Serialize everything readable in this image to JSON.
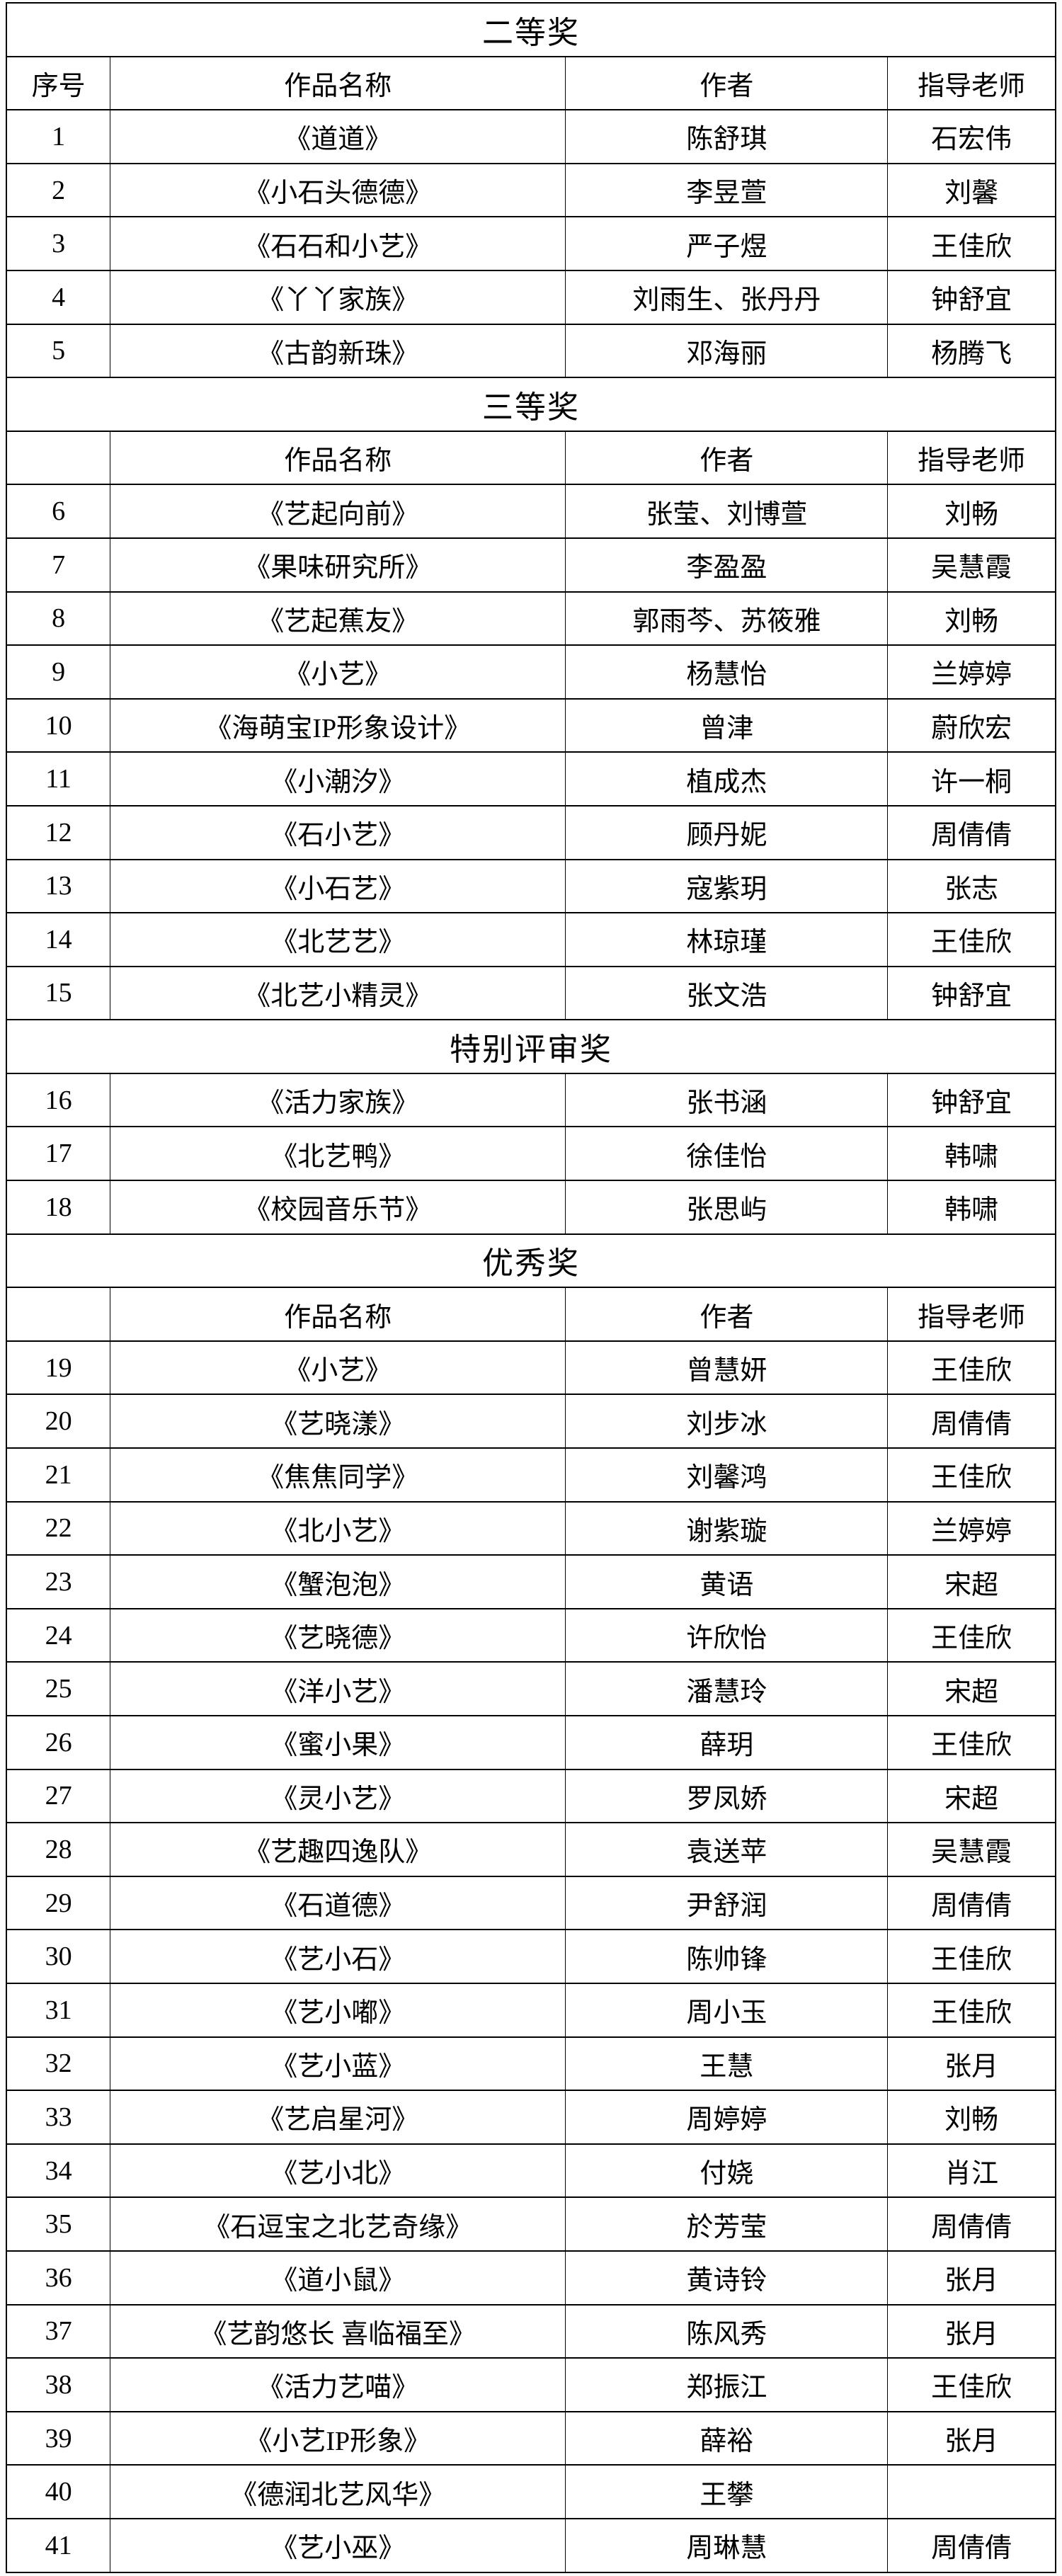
{
  "page": {
    "background": "#fcfcfc",
    "border_color": "#000000"
  },
  "table": {
    "columns": [
      "序号",
      "作品名称",
      "作者",
      "指导老师"
    ],
    "sections": [
      {
        "title": "二等奖",
        "header": [
          "序号",
          "作品名称",
          "作者",
          "指导老师"
        ],
        "rows": [
          [
            "1",
            "《道道》",
            "陈舒琪",
            "石宏伟"
          ],
          [
            "2",
            "《小石头德德》",
            "李昱萱",
            "刘馨"
          ],
          [
            "3",
            "《石石和小艺》",
            "严子煜",
            "王佳欣"
          ],
          [
            "4",
            "《丫丫家族》",
            "刘雨生、张丹丹",
            "钟舒宜"
          ],
          [
            "5",
            "《古韵新珠》",
            "邓海丽",
            "杨腾飞"
          ]
        ]
      },
      {
        "title": "三等奖",
        "header": [
          "",
          "作品名称",
          "作者",
          "指导老师"
        ],
        "rows": [
          [
            "6",
            "《艺起向前》",
            "张莹、刘博萱",
            "刘畅"
          ],
          [
            "7",
            "《果味研究所》",
            "李盈盈",
            "吴慧霞"
          ],
          [
            "8",
            "《艺起蕉友》",
            "郭雨芩、苏筱雅",
            "刘畅"
          ],
          [
            "9",
            "《小艺》",
            "杨慧怡",
            "兰婷婷"
          ],
          [
            "10",
            "《海萌宝IP形象设计》",
            "曾津",
            "蔚欣宏"
          ],
          [
            "11",
            "《小潮汐》",
            "植成杰",
            "许一桐"
          ],
          [
            "12",
            "《石小艺》",
            "顾丹妮",
            "周倩倩"
          ],
          [
            "13",
            "《小石艺》",
            "寇紫玥",
            "张志"
          ],
          [
            "14",
            "《北艺艺》",
            "林琼瑾",
            "王佳欣"
          ],
          [
            "15",
            "《北艺小精灵》",
            "张文浩",
            "钟舒宜"
          ]
        ]
      },
      {
        "title": "特别评审奖",
        "rows": [
          [
            "16",
            "《活力家族》",
            "张书涵",
            "钟舒宜"
          ],
          [
            "17",
            "《北艺鸭》",
            "徐佳怡",
            "韩啸"
          ],
          [
            "18",
            "《校园音乐节》",
            "张思屿",
            "韩啸"
          ]
        ]
      },
      {
        "title": "优秀奖",
        "header": [
          "",
          "作品名称",
          "作者",
          "指导老师"
        ],
        "rows": [
          [
            "19",
            "《小艺》",
            "曾慧妍",
            "王佳欣"
          ],
          [
            "20",
            "《艺晓漾》",
            "刘步冰",
            "周倩倩"
          ],
          [
            "21",
            "《焦焦同学》",
            "刘馨鸿",
            "王佳欣"
          ],
          [
            "22",
            "《北小艺》",
            "谢紫璇",
            "兰婷婷"
          ],
          [
            "23",
            "《蟹泡泡》",
            "黄语",
            "宋超"
          ],
          [
            "24",
            "《艺晓德》",
            "许欣怡",
            "王佳欣"
          ],
          [
            "25",
            "《洋小艺》",
            "潘慧玲",
            "宋超"
          ],
          [
            "26",
            "《蜜小果》",
            "薛玥",
            "王佳欣"
          ],
          [
            "27",
            "《灵小艺》",
            "罗凤娇",
            "宋超"
          ],
          [
            "28",
            "《艺趣四逸队》",
            "袁送苹",
            "吴慧霞"
          ],
          [
            "29",
            "《石道德》",
            "尹舒润",
            "周倩倩"
          ],
          [
            "30",
            "《艺小石》",
            "陈帅锋",
            "王佳欣"
          ],
          [
            "31",
            "《艺小嘟》",
            "周小玉",
            "王佳欣"
          ],
          [
            "32",
            "《艺小蓝》",
            "王慧",
            "张月"
          ],
          [
            "33",
            "《艺启星河》",
            "周婷婷",
            "刘畅"
          ],
          [
            "34",
            "《艺小北》",
            "付娆",
            "肖江"
          ],
          [
            "35",
            "《石逗宝之北艺奇缘》",
            "於芳莹",
            "周倩倩"
          ],
          [
            "36",
            "《道小鼠》",
            "黄诗铃",
            "张月"
          ],
          [
            "37",
            "《艺韵悠长 喜临福至》",
            "陈风秀",
            "张月"
          ],
          [
            "38",
            "《活力艺喵》",
            "郑振江",
            "王佳欣"
          ],
          [
            "39",
            "《小艺IP形象》",
            "薛裕",
            "张月"
          ],
          [
            "40",
            "《德润北艺风华》",
            "王攀",
            ""
          ],
          [
            "41",
            "《艺小巫》",
            "周琳慧",
            "周倩倩"
          ]
        ]
      }
    ]
  }
}
